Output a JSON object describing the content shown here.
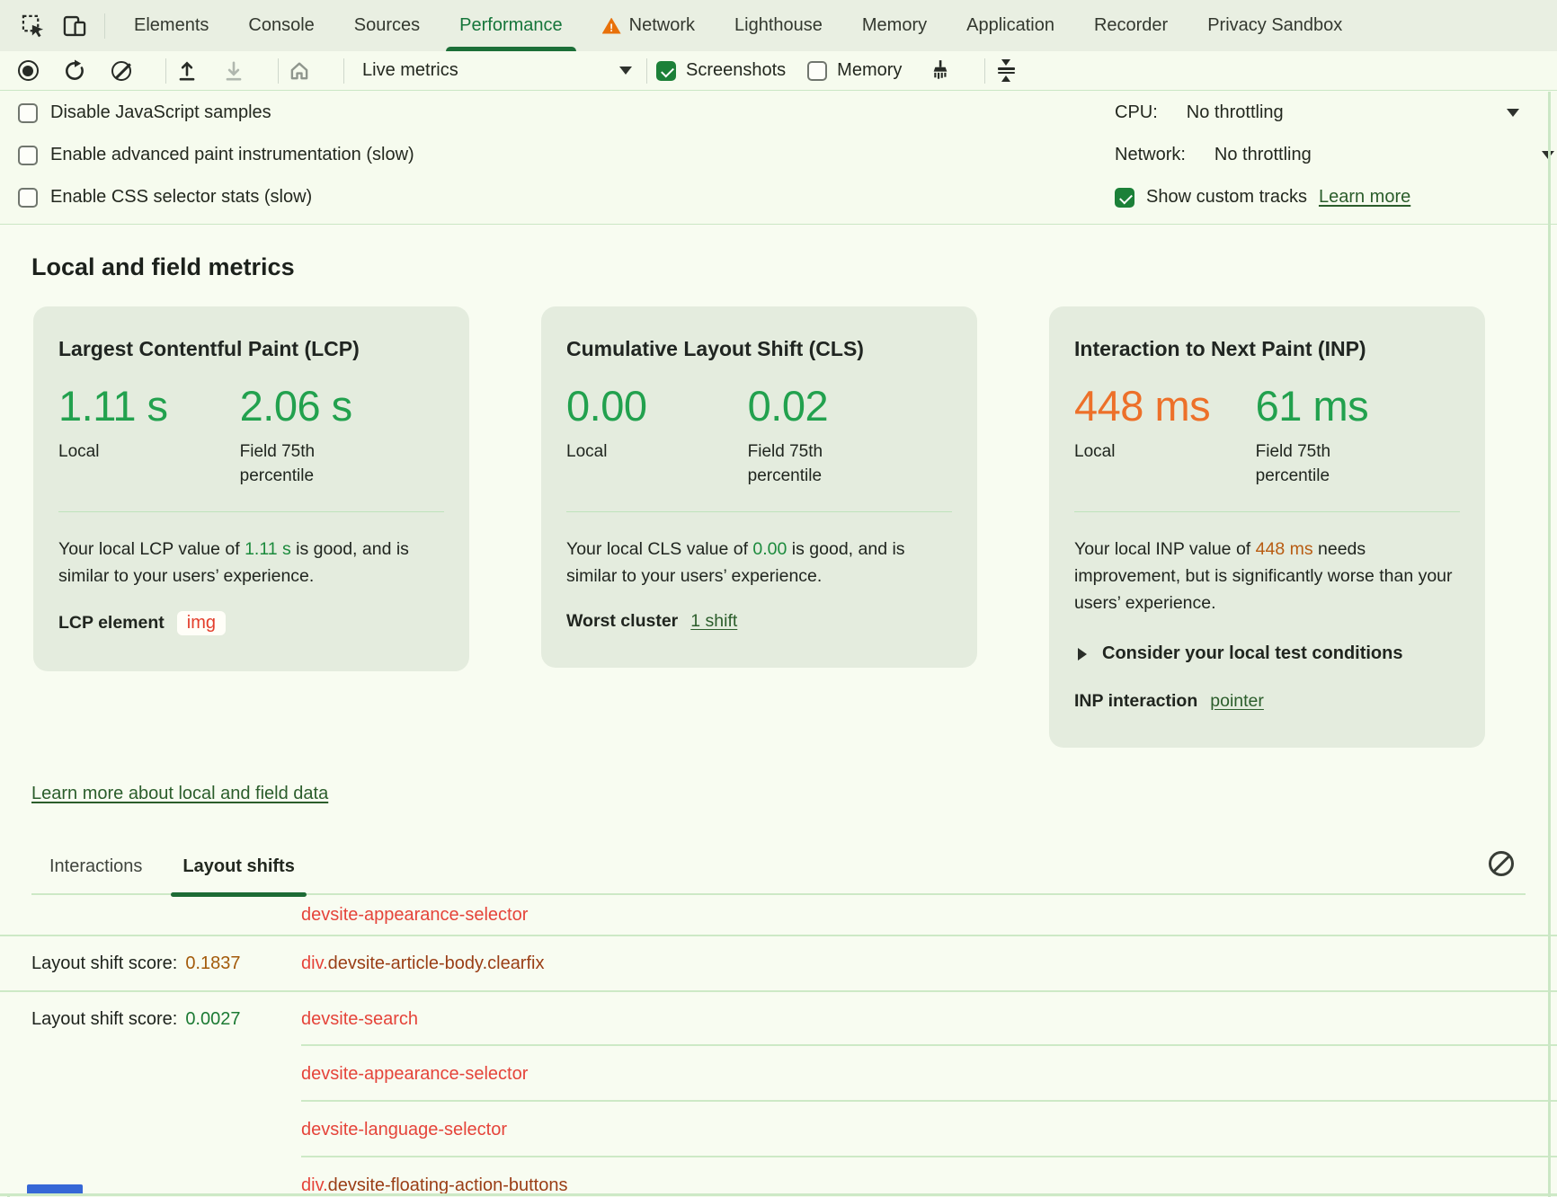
{
  "colors": {
    "accent_green": "#1c6f38",
    "good_value": "#22a14e",
    "poor_value": "#ed7029",
    "good_inline": "#1b8a3c",
    "poor_inline": "#b85c12",
    "score_poor": "#a35a0a",
    "score_good": "#1c7a34",
    "element_link_red": "#e5443a",
    "element_link_brown": "#9a3e16",
    "green_link": "#2b5d2b",
    "warning_orange": "#e8710a"
  },
  "tabbar": {
    "tabs": [
      {
        "label": "Elements"
      },
      {
        "label": "Console"
      },
      {
        "label": "Sources"
      },
      {
        "label": "Performance",
        "active": true
      },
      {
        "label": "Network",
        "warning": true
      },
      {
        "label": "Lighthouse"
      },
      {
        "label": "Memory"
      },
      {
        "label": "Application"
      },
      {
        "label": "Recorder"
      },
      {
        "label": "Privacy Sandbox"
      }
    ]
  },
  "toolbar": {
    "dropdown_label": "Live metrics",
    "screenshots_label": "Screenshots",
    "memory_label": "Memory"
  },
  "settings": {
    "options": [
      "Disable JavaScript samples",
      "Enable advanced paint instrumentation (slow)",
      "Enable CSS selector stats (slow)"
    ],
    "cpu_label": "CPU:",
    "cpu_value": "No throttling",
    "network_label": "Network:",
    "network_value": "No throttling",
    "custom_tracks_label": "Show custom tracks",
    "custom_tracks_link": "Learn more"
  },
  "metrics": {
    "heading": "Local and field metrics",
    "learn_more": "Learn more about local and field data",
    "cards": [
      {
        "title": "Largest Contentful Paint (LCP)",
        "local_value": "1.11 s",
        "local_label": "Local",
        "field_value": "2.06 s",
        "field_label": "Field 75th percentile",
        "desc_before": "Your local LCP value of ",
        "desc_value": "1.11 s",
        "desc_after": " is good, and is similar to your users’ experience.",
        "element_label": "LCP element",
        "element_value": "img"
      },
      {
        "title": "Cumulative Layout Shift (CLS)",
        "local_value": "0.00",
        "local_label": "Local",
        "field_value": "0.02",
        "field_label": "Field 75th percentile",
        "desc_before": "Your local CLS value of ",
        "desc_value": "0.00",
        "desc_after": " is good, and is similar to your users’ experience.",
        "cluster_label": "Worst cluster",
        "cluster_link": "1 shift"
      },
      {
        "title": "Interaction to Next Paint (INP)",
        "local_value": "448 ms",
        "local_label": "Local",
        "field_value": "61 ms",
        "field_label": "Field 75th percentile",
        "desc_before": "Your local INP value of ",
        "desc_value": "448 ms",
        "desc_after": " needs improvement, but is significantly worse than your users’ experience.",
        "details_label": "Consider your local test conditions",
        "interaction_label": "INP interaction",
        "interaction_link": "pointer"
      }
    ]
  },
  "log": {
    "tabs": [
      {
        "label": "Interactions"
      },
      {
        "label": "Layout shifts",
        "active": true
      }
    ],
    "score_label": "Layout shift score:",
    "rows": [
      {
        "element_parts": [
          {
            "text": "devsite-appearance-selector",
            "style": "red"
          }
        ]
      },
      {
        "score": "0.1837",
        "score_style": "poor",
        "element_parts": [
          {
            "text": "div.",
            "style": "red"
          },
          {
            "text": "devsite-article-body.clearfix",
            "style": "brown"
          }
        ]
      },
      {
        "score": "0.0027",
        "score_style": "good",
        "element_parts": [
          {
            "text": "devsite-search",
            "style": "red"
          }
        ]
      },
      {
        "element_parts": [
          {
            "text": "devsite-appearance-selector",
            "style": "red"
          }
        ]
      },
      {
        "element_parts": [
          {
            "text": "devsite-language-selector",
            "style": "red"
          }
        ]
      },
      {
        "element_parts": [
          {
            "text": "div.",
            "style": "red"
          },
          {
            "text": "devsite-floating-action-buttons",
            "style": "brown"
          }
        ]
      }
    ]
  }
}
